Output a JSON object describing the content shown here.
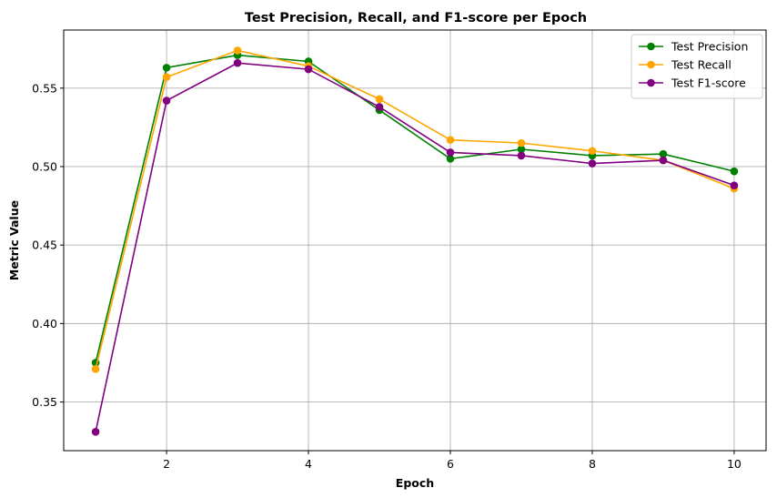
{
  "chart_data": {
    "type": "line",
    "title": "Test Precision, Recall, and F1-score per Epoch",
    "xlabel": "Epoch",
    "ylabel": "Metric Value",
    "x": [
      1,
      2,
      3,
      4,
      5,
      6,
      7,
      8,
      9,
      10
    ],
    "xlim": [
      0.55,
      10.45
    ],
    "ylim": [
      0.319,
      0.587
    ],
    "xticks": [
      2,
      4,
      6,
      8,
      10
    ],
    "yticks": [
      0.35,
      0.4,
      0.45,
      0.5,
      0.55
    ],
    "xtick_labels": [
      "2",
      "4",
      "6",
      "8",
      "10"
    ],
    "ytick_labels": [
      "0.35",
      "0.40",
      "0.45",
      "0.50",
      "0.55"
    ],
    "grid": true,
    "legend_position": "top-right",
    "series": [
      {
        "name": "Test Precision",
        "color": "#008000",
        "values": [
          0.375,
          0.563,
          0.571,
          0.567,
          0.536,
          0.505,
          0.511,
          0.507,
          0.508,
          0.497
        ]
      },
      {
        "name": "Test Recall",
        "color": "#FFA500",
        "values": [
          0.371,
          0.557,
          0.574,
          0.564,
          0.543,
          0.517,
          0.515,
          0.51,
          0.504,
          0.486
        ]
      },
      {
        "name": "Test F1-score",
        "color": "#800080",
        "values": [
          0.331,
          0.542,
          0.566,
          0.562,
          0.538,
          0.509,
          0.507,
          0.502,
          0.504,
          0.488
        ]
      }
    ]
  }
}
